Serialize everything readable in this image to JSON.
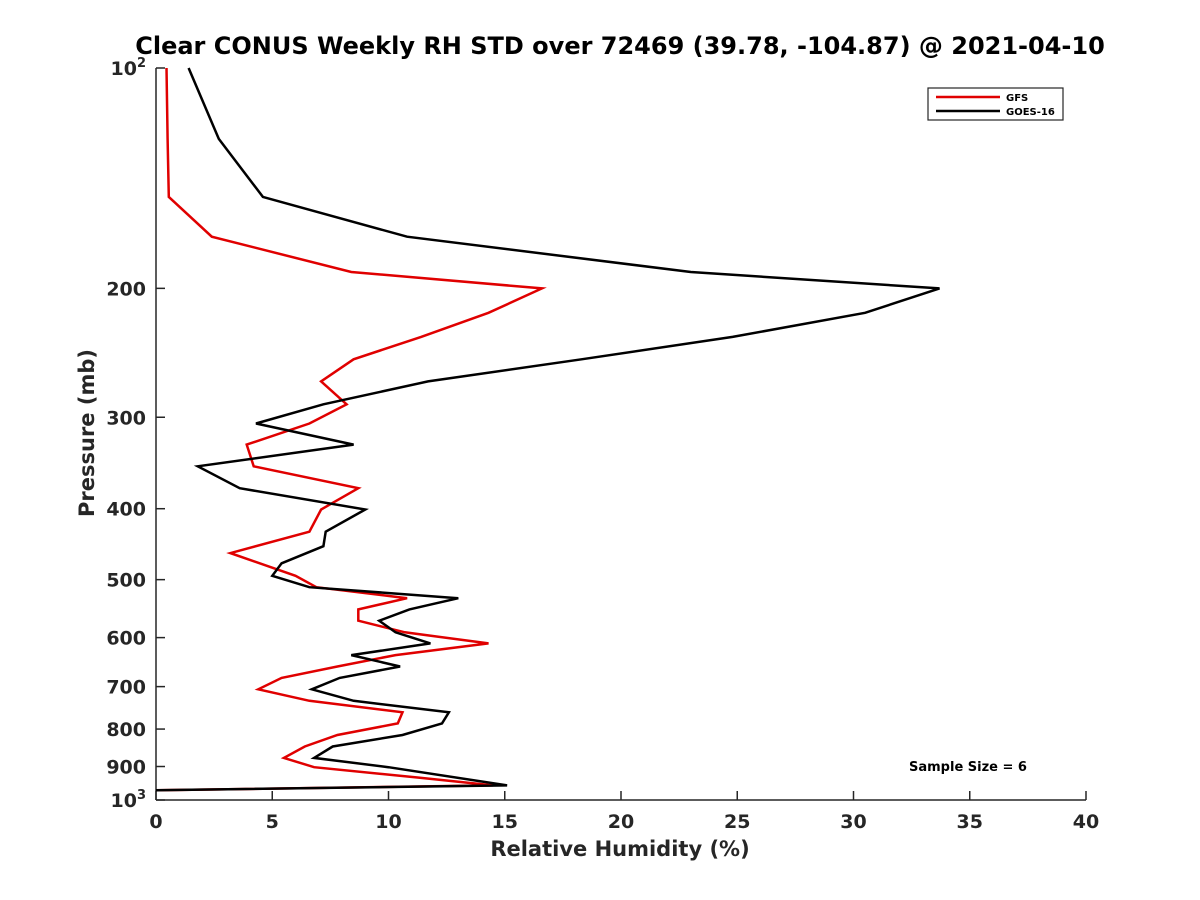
{
  "chart_data": {
    "type": "line",
    "title": "Clear CONUS Weekly RH STD over 72469 (39.78, -104.87) @ 2021-04-10",
    "xlabel": "Relative Humidity (%)",
    "ylabel": "Pressure (mb)",
    "xlim": [
      0,
      40
    ],
    "ylim": [
      100,
      1000
    ],
    "y_scale": "log",
    "y_reversed": true,
    "grid": false,
    "legend_position": "top-right",
    "x_ticks": [
      {
        "value": 0,
        "label": "0"
      },
      {
        "value": 5,
        "label": "5"
      },
      {
        "value": 10,
        "label": "10"
      },
      {
        "value": 15,
        "label": "15"
      },
      {
        "value": 20,
        "label": "20"
      },
      {
        "value": 25,
        "label": "25"
      },
      {
        "value": 30,
        "label": "30"
      },
      {
        "value": 35,
        "label": "35"
      },
      {
        "value": 40,
        "label": "40"
      }
    ],
    "y_ticks": [
      {
        "value": 100,
        "base": "10",
        "exp": "2"
      },
      {
        "value": 200,
        "base": "200",
        "exp": ""
      },
      {
        "value": 300,
        "base": "300",
        "exp": ""
      },
      {
        "value": 400,
        "base": "400",
        "exp": ""
      },
      {
        "value": 500,
        "base": "500",
        "exp": ""
      },
      {
        "value": 600,
        "base": "600",
        "exp": ""
      },
      {
        "value": 700,
        "base": "700",
        "exp": ""
      },
      {
        "value": 800,
        "base": "800",
        "exp": ""
      },
      {
        "value": 900,
        "base": "900",
        "exp": ""
      },
      {
        "value": 1000,
        "base": "10",
        "exp": "3"
      }
    ],
    "annotation": "Sample Size = 6",
    "series": [
      {
        "name": "GFS",
        "color": "#e00000",
        "points": [
          [
            0.45,
            100
          ],
          [
            0.5,
            125
          ],
          [
            0.55,
            150
          ],
          [
            2.4,
            170
          ],
          [
            8.4,
            190
          ],
          [
            16.6,
            200
          ],
          [
            14.3,
            216
          ],
          [
            11.4,
            233
          ],
          [
            8.5,
            250
          ],
          [
            7.1,
            268
          ],
          [
            8.2,
            288
          ],
          [
            6.6,
            306
          ],
          [
            3.9,
            327
          ],
          [
            4.2,
            350
          ],
          [
            8.7,
            375
          ],
          [
            7.1,
            401
          ],
          [
            6.6,
            430
          ],
          [
            3.2,
            460
          ],
          [
            6.0,
            494
          ],
          [
            6.9,
            512
          ],
          [
            10.8,
            530
          ],
          [
            8.7,
            549
          ],
          [
            8.7,
            569
          ],
          [
            10.7,
            590
          ],
          [
            14.3,
            611
          ],
          [
            10.3,
            634
          ],
          [
            7.8,
            657
          ],
          [
            5.4,
            681
          ],
          [
            4.4,
            706
          ],
          [
            6.6,
            732
          ],
          [
            10.6,
            759
          ],
          [
            10.4,
            786
          ],
          [
            7.8,
            815
          ],
          [
            6.4,
            845
          ],
          [
            5.5,
            876
          ],
          [
            6.8,
            902
          ],
          [
            11.3,
            932
          ],
          [
            14.5,
            955
          ],
          [
            0,
            970
          ]
        ]
      },
      {
        "name": "GOES-16",
        "color": "#000000",
        "points": [
          [
            1.4,
            100
          ],
          [
            2.7,
            125
          ],
          [
            4.6,
            150
          ],
          [
            10.8,
            170
          ],
          [
            23.0,
            190
          ],
          [
            33.7,
            200
          ],
          [
            30.5,
            216
          ],
          [
            24.8,
            233
          ],
          [
            18.3,
            250
          ],
          [
            11.7,
            268
          ],
          [
            7.2,
            288
          ],
          [
            4.3,
            306
          ],
          [
            8.5,
            327
          ],
          [
            1.8,
            350
          ],
          [
            3.6,
            375
          ],
          [
            9.0,
            401
          ],
          [
            7.3,
            430
          ],
          [
            7.2,
            450
          ],
          [
            5.4,
            475
          ],
          [
            5.0,
            494
          ],
          [
            6.6,
            512
          ],
          [
            13.0,
            530
          ],
          [
            10.9,
            549
          ],
          [
            9.6,
            569
          ],
          [
            10.3,
            590
          ],
          [
            11.8,
            611
          ],
          [
            8.4,
            634
          ],
          [
            10.5,
            657
          ],
          [
            7.9,
            681
          ],
          [
            6.7,
            706
          ],
          [
            8.5,
            732
          ],
          [
            12.6,
            759
          ],
          [
            12.3,
            786
          ],
          [
            10.6,
            815
          ],
          [
            7.6,
            845
          ],
          [
            6.8,
            876
          ],
          [
            10.0,
            902
          ],
          [
            15.1,
            955
          ],
          [
            0,
            970
          ]
        ]
      }
    ]
  }
}
